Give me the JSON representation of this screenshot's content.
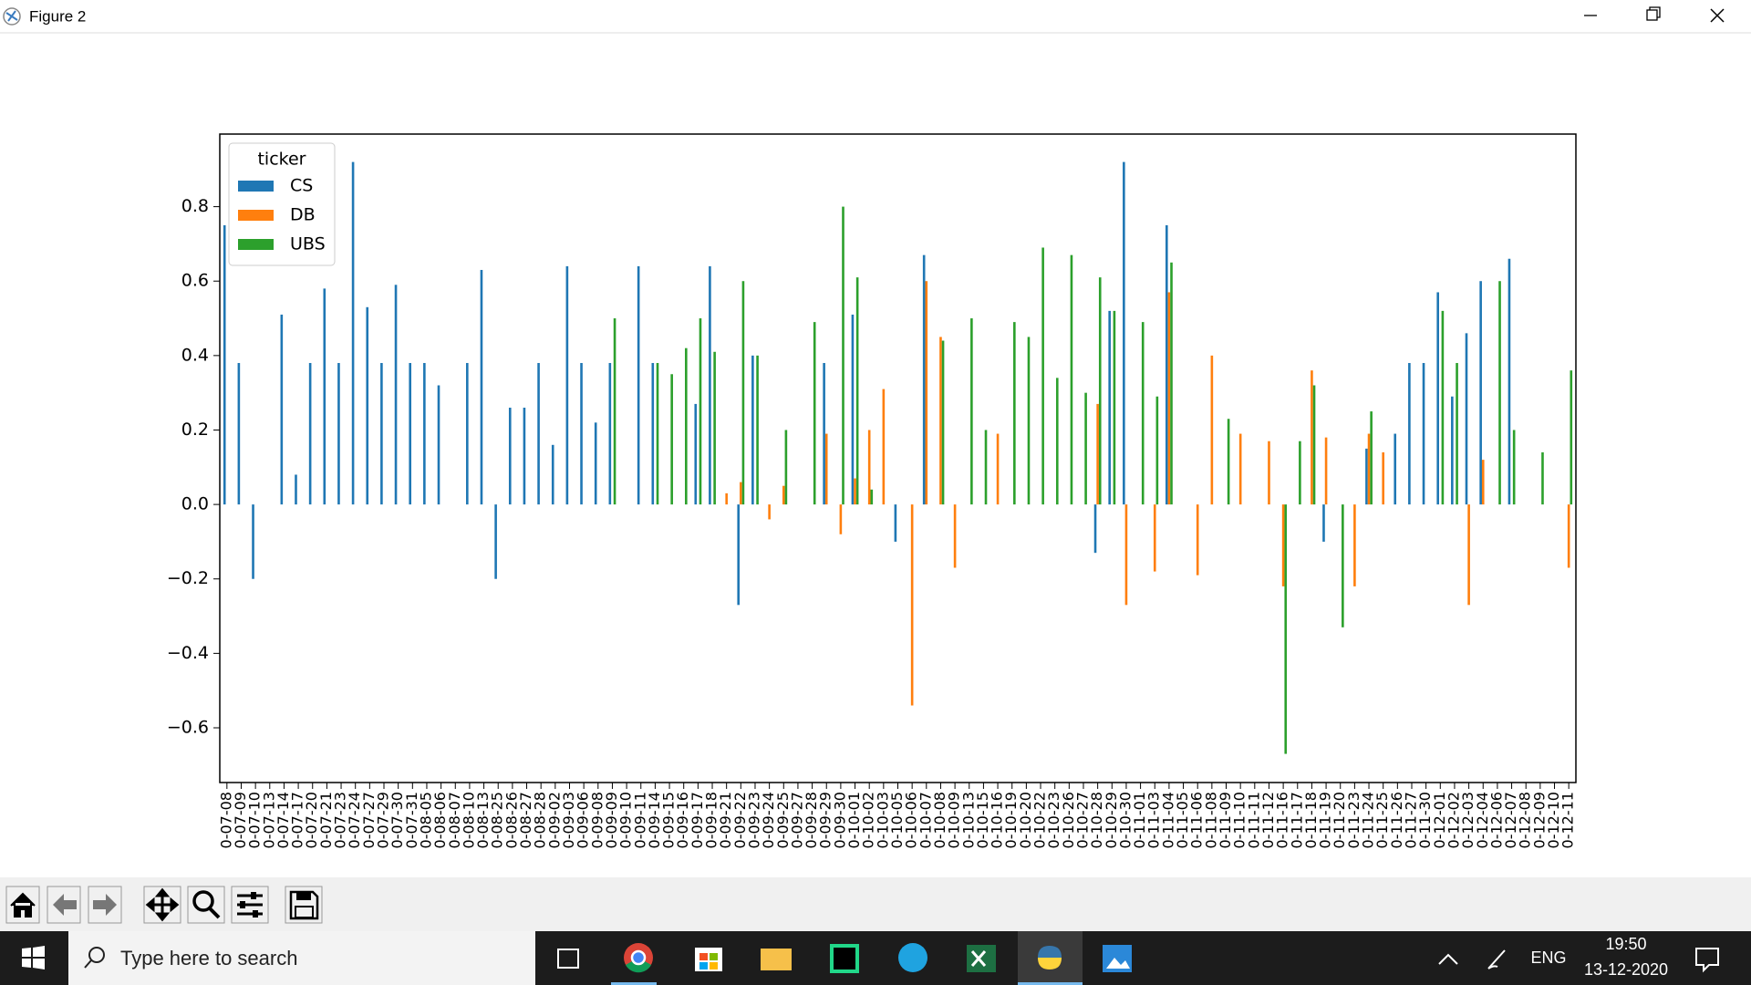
{
  "window": {
    "title": "Figure 2"
  },
  "chart_data": {
    "type": "bar",
    "categories": [
      "0-07-08",
      "0-07-09",
      "0-07-10",
      "0-07-13",
      "0-07-14",
      "0-07-17",
      "0-07-20",
      "0-07-21",
      "0-07-23",
      "0-07-24",
      "0-07-27",
      "0-07-29",
      "0-07-30",
      "0-07-31",
      "0-08-05",
      "0-08-06",
      "0-08-07",
      "0-08-10",
      "0-08-13",
      "0-08-25",
      "0-08-26",
      "0-08-27",
      "0-08-28",
      "0-09-02",
      "0-09-03",
      "0-09-06",
      "0-09-08",
      "0-09-09",
      "0-09-10",
      "0-09-11",
      "0-09-14",
      "0-09-15",
      "0-09-16",
      "0-09-17",
      "0-09-18",
      "0-09-21",
      "0-09-22",
      "0-09-23",
      "0-09-24",
      "0-09-25",
      "0-09-27",
      "0-09-28",
      "0-09-29",
      "0-09-30",
      "0-10-01",
      "0-10-02",
      "0-10-03",
      "0-10-05",
      "0-10-06",
      "0-10-07",
      "0-10-08",
      "0-10-09",
      "0-10-13",
      "0-10-15",
      "0-10-16",
      "0-10-19",
      "0-10-20",
      "0-10-22",
      "0-10-23",
      "0-10-26",
      "0-10-27",
      "0-10-28",
      "0-10-29",
      "0-10-30",
      "0-11-01",
      "0-11-03",
      "0-11-04",
      "0-11-05",
      "0-11-06",
      "0-11-08",
      "0-11-09",
      "0-11-10",
      "0-11-11",
      "0-11-12",
      "0-11-16",
      "0-11-17",
      "0-11-18",
      "0-11-19",
      "0-11-20",
      "0-11-23",
      "0-11-24",
      "0-11-25",
      "0-11-26",
      "0-11-27",
      "0-11-30",
      "0-12-01",
      "0-12-02",
      "0-12-03",
      "0-12-04",
      "0-12-06",
      "0-12-07",
      "0-12-08",
      "0-12-09",
      "0-12-10",
      "0-12-11"
    ],
    "series": [
      {
        "name": "CS",
        "color": "#1f77b4",
        "values": [
          0.75,
          0.38,
          -0.2,
          0,
          0.51,
          0.08,
          0.38,
          0.58,
          0.38,
          0.92,
          0.53,
          0.38,
          0.59,
          0.38,
          0.38,
          0.32,
          0,
          0.38,
          0.63,
          -0.2,
          0.26,
          0.26,
          0.38,
          0.16,
          0.64,
          0.38,
          0.22,
          0.38,
          0,
          0.64,
          0.38,
          0,
          0,
          0.27,
          0.64,
          0,
          -0.27,
          0.4,
          0,
          0,
          0,
          0,
          0.38,
          0,
          0.51,
          0,
          0,
          -0.1,
          0,
          0.67,
          0,
          0,
          0,
          0,
          0,
          0,
          0,
          0,
          0,
          0,
          0,
          -0.13,
          0.52,
          0.92,
          0,
          0,
          0.75,
          0,
          0,
          0,
          0,
          0,
          0,
          0,
          0,
          0,
          0,
          -0.1,
          0,
          0,
          0.15,
          0,
          0.19,
          0.38,
          0.38,
          0.57,
          0.29,
          0.46,
          0.6,
          0,
          0.66,
          0,
          0,
          0,
          0
        ]
      },
      {
        "name": "DB",
        "color": "#ff7f0e",
        "values": [
          0,
          0,
          0,
          0,
          0,
          0,
          0,
          0,
          0,
          0,
          0,
          0,
          0,
          0,
          0,
          0,
          0,
          0,
          0,
          0,
          0,
          0,
          0,
          0,
          0,
          0,
          0,
          0,
          0,
          0,
          0,
          0,
          0,
          0,
          0,
          0.03,
          0.06,
          0,
          -0.04,
          0.05,
          0,
          0,
          0.19,
          -0.08,
          0.07,
          0.2,
          0.31,
          0,
          -0.54,
          0.6,
          0.45,
          -0.17,
          0,
          0,
          0.19,
          0,
          0,
          0,
          0,
          0,
          0,
          0.27,
          0,
          -0.27,
          0,
          -0.18,
          0.57,
          0,
          -0.19,
          0.4,
          0,
          0.19,
          0,
          0.17,
          -0.22,
          0,
          0.36,
          0.18,
          0,
          -0.22,
          0.19,
          0.14,
          0,
          0,
          0,
          0,
          0,
          -0.27,
          0.12,
          0,
          0,
          0,
          0,
          0,
          -0.17
        ]
      },
      {
        "name": "UBS",
        "color": "#2ca02c",
        "values": [
          0,
          0,
          0,
          0,
          0,
          0,
          0,
          0,
          0,
          0,
          0,
          0,
          0,
          0,
          0,
          0,
          0,
          0,
          0,
          0,
          0,
          0,
          0,
          0,
          0,
          0,
          0,
          0.5,
          0,
          0,
          0.38,
          0.35,
          0.42,
          0.5,
          0.41,
          0,
          0.6,
          0.4,
          0,
          0.2,
          0,
          0.49,
          0,
          0.8,
          0.61,
          0.04,
          0,
          0,
          0,
          0,
          0.44,
          0,
          0.5,
          0.2,
          0,
          0.49,
          0.45,
          0.69,
          0.34,
          0.67,
          0.3,
          0.61,
          0.52,
          0,
          0.49,
          0.29,
          0.65,
          0,
          0,
          0,
          0.23,
          0,
          0,
          0,
          -0.67,
          0.17,
          0.32,
          0,
          -0.33,
          0,
          0.25,
          0,
          0,
          0,
          0,
          0.52,
          0.38,
          0,
          0,
          0.6,
          0.2,
          0,
          0.14,
          0,
          0.36
        ]
      }
    ],
    "ylim": [
      -0.747,
      0.995
    ],
    "yticks": [
      {
        "value": -0.6,
        "label": "−0.6"
      },
      {
        "value": -0.4,
        "label": "−0.4"
      },
      {
        "value": -0.2,
        "label": "−0.2"
      },
      {
        "value": 0,
        "label": "0.0"
      },
      0.2,
      0.4,
      0.6,
      0.8
    ],
    "grid": false,
    "legend": {
      "title": "ticker",
      "loc": "upper left"
    }
  },
  "taskbar": {
    "search": "Type here to search",
    "language": "ENG",
    "time": "19:50",
    "date": "13-12-2020"
  }
}
